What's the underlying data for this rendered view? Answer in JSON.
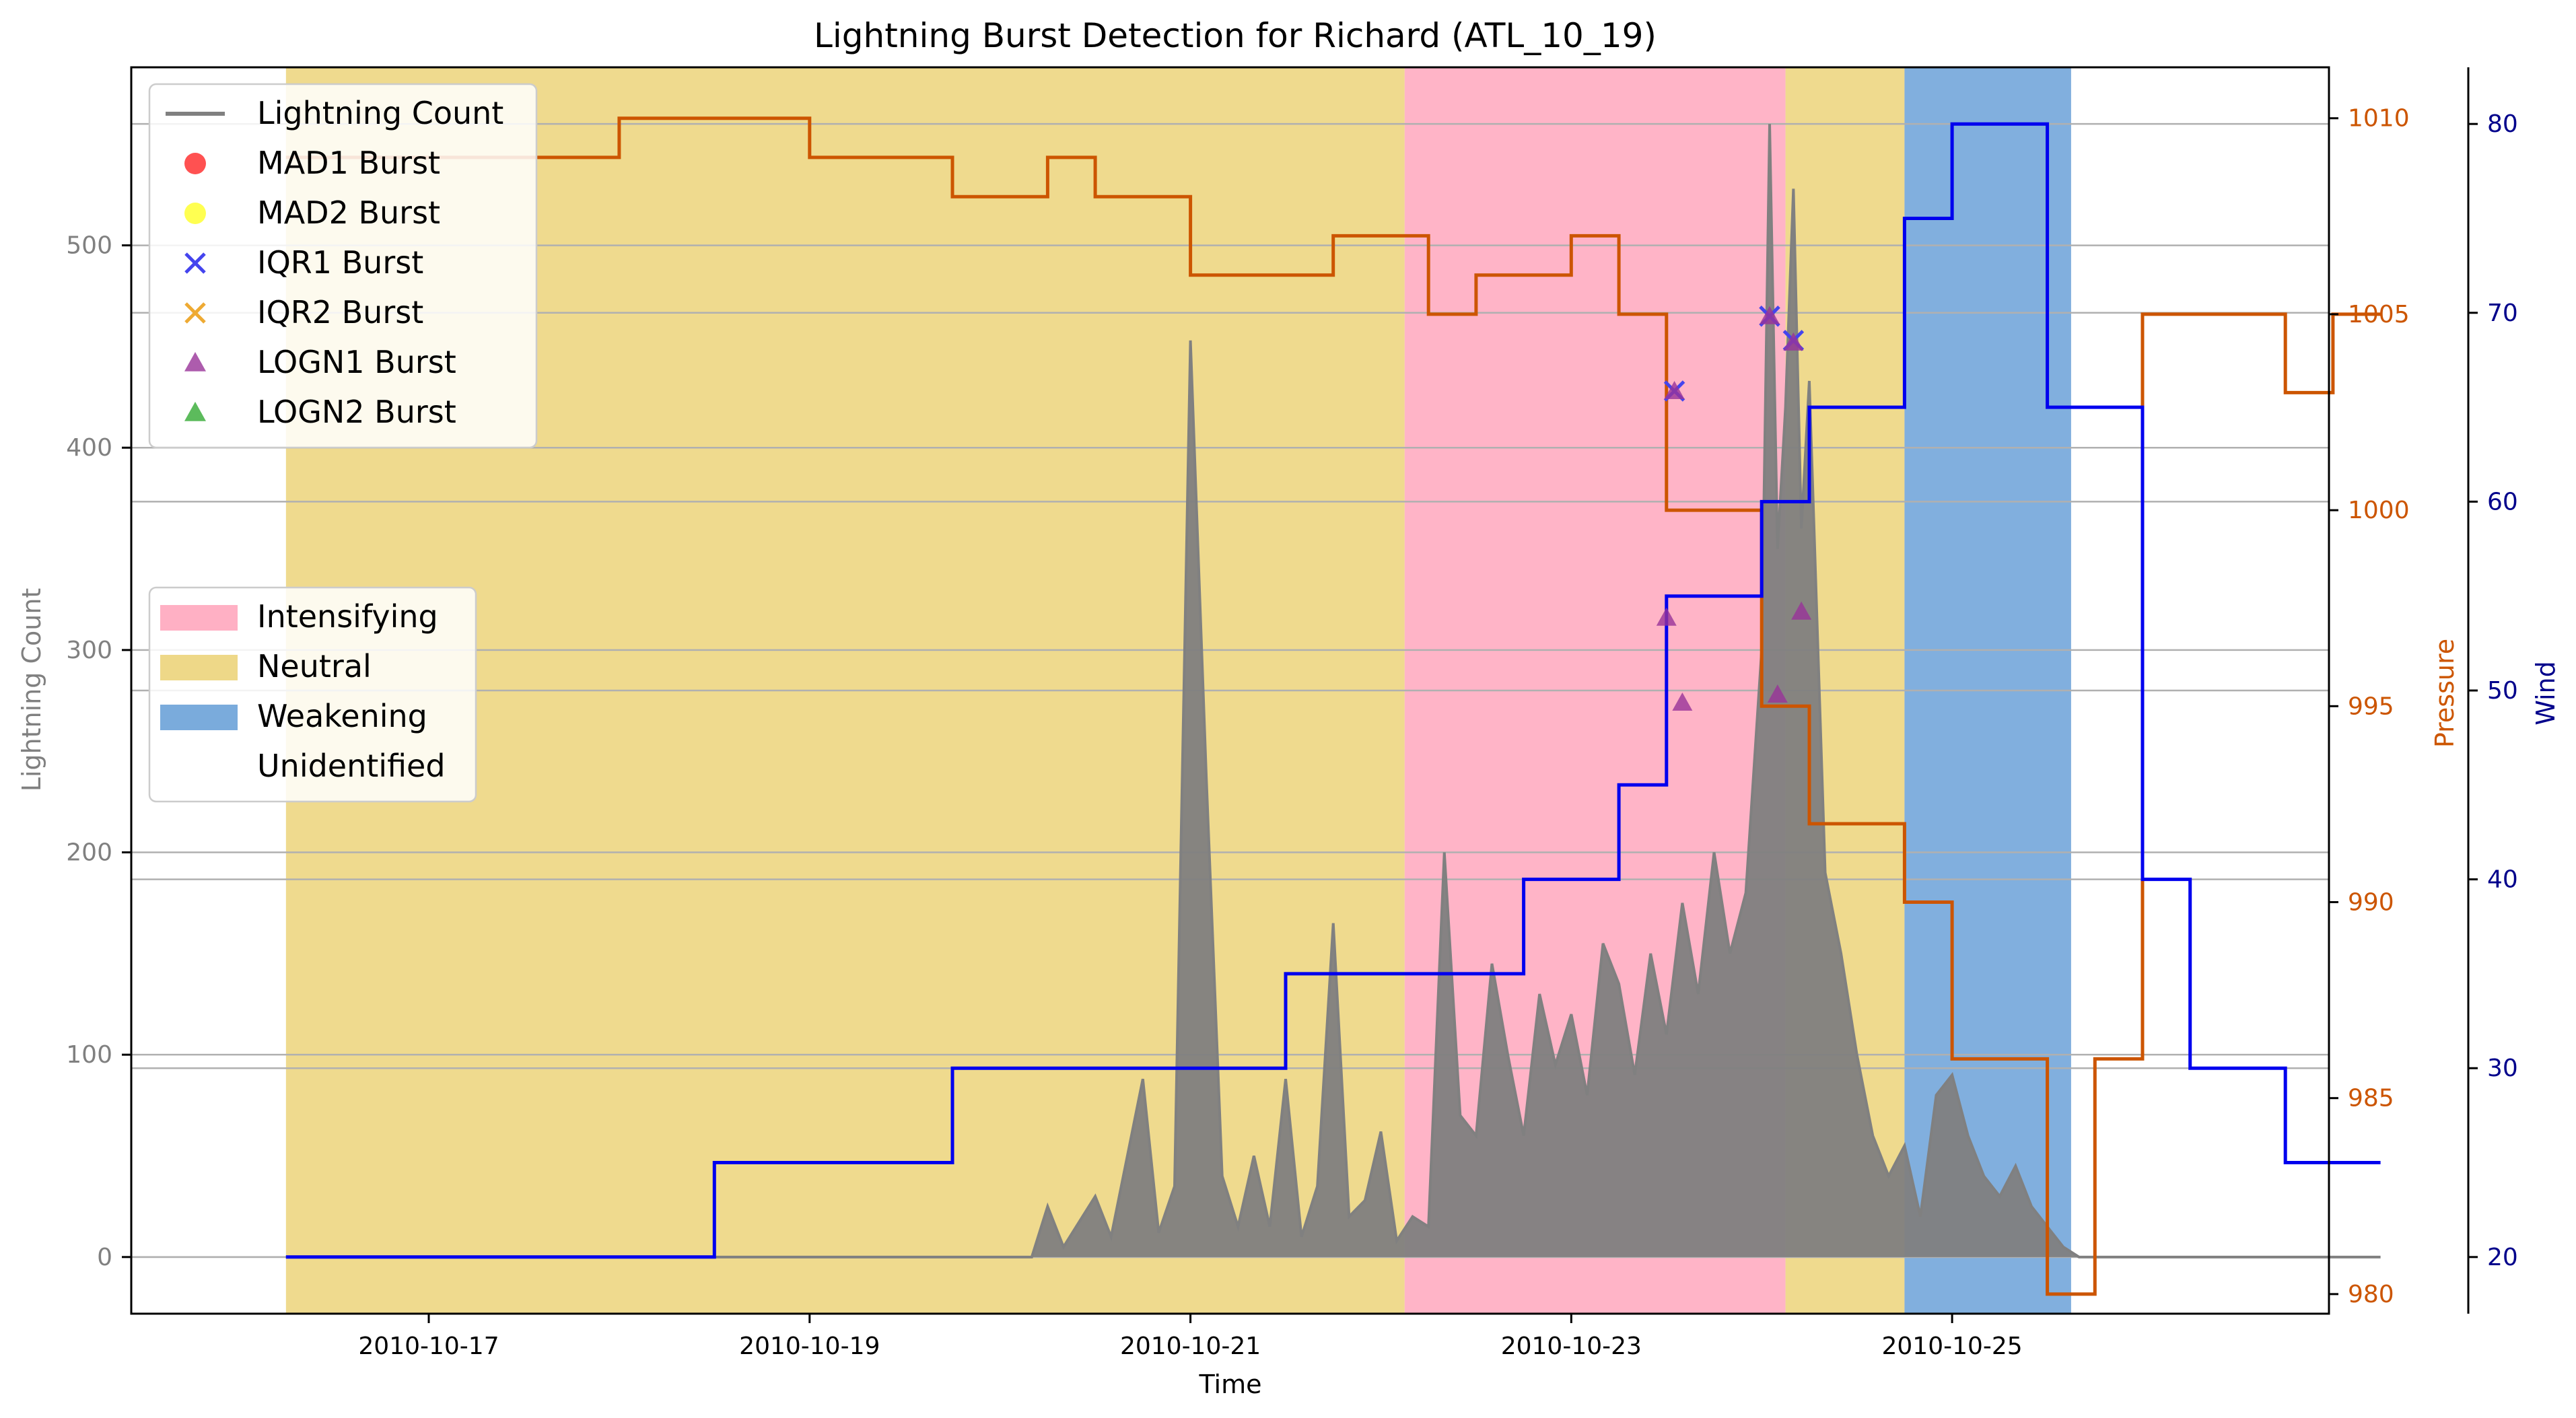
{
  "chart_data": {
    "type": "line",
    "title": "Lightning Burst Detection for Richard (ATL_10_19)",
    "xlabel": "Time",
    "ylabel_left": "Lightning Count",
    "ylabel_pressure": "Pressure",
    "ylabel_wind": "Wind",
    "x_range": [
      "2010-10-15T10:30",
      "2010-10-26T23:30"
    ],
    "x_ticks": [
      "2010-10-17",
      "2010-10-19",
      "2010-10-21",
      "2010-10-23",
      "2010-10-25"
    ],
    "ylim_left": [
      -28,
      588
    ],
    "yticks_left": [
      0,
      100,
      200,
      300,
      400,
      500
    ],
    "ylim_pressure": [
      979.5,
      1011.3
    ],
    "yticks_pressure": [
      980,
      985,
      990,
      995,
      1000,
      1005,
      1010
    ],
    "ylim_wind": [
      17,
      83
    ],
    "yticks_wind": [
      20,
      30,
      40,
      50,
      60,
      70,
      80
    ],
    "grid": "horizontal",
    "colors": {
      "lightning": "#808080",
      "pressure": "#cc5500",
      "wind": "#0000ee",
      "mad1": "#ff3333",
      "mad2": "#ffff33",
      "iqr1": "#4444ee",
      "iqr2": "#eeaa33",
      "logn1": "#993399",
      "logn2": "#33aa33",
      "intensifying": "#ffb0c4",
      "neutral": "#eed888",
      "weakening": "#7aabdc",
      "pressure_axis": "#cc5500",
      "wind_axis": "#00008b"
    },
    "phases": [
      {
        "label": "Neutral",
        "start": "2010-10-16T06:00",
        "end": "2010-10-22T03:00"
      },
      {
        "label": "Intensifying",
        "start": "2010-10-22T03:00",
        "end": "2010-10-24T03:00"
      },
      {
        "label": "Neutral",
        "start": "2010-10-24T03:00",
        "end": "2010-10-24T18:00"
      },
      {
        "label": "Weakening",
        "start": "2010-10-24T18:00",
        "end": "2010-10-25T15:00"
      }
    ],
    "pressure_series": {
      "name": "Pressure",
      "points": [
        [
          "2010-10-16T06:00",
          1009
        ],
        [
          "2010-10-18T00:00",
          1009
        ],
        [
          "2010-10-18T00:00",
          1010
        ],
        [
          "2010-10-19T00:00",
          1010
        ],
        [
          "2010-10-19T00:00",
          1009
        ],
        [
          "2010-10-19T18:00",
          1009
        ],
        [
          "2010-10-19T18:00",
          1008
        ],
        [
          "2010-10-20T06:00",
          1008
        ],
        [
          "2010-10-20T06:00",
          1009
        ],
        [
          "2010-10-20T12:00",
          1009
        ],
        [
          "2010-10-20T12:00",
          1008
        ],
        [
          "2010-10-21T00:00",
          1008
        ],
        [
          "2010-10-21T00:00",
          1006
        ],
        [
          "2010-10-21T18:00",
          1006
        ],
        [
          "2010-10-21T18:00",
          1007
        ],
        [
          "2010-10-22T06:00",
          1007
        ],
        [
          "2010-10-22T06:00",
          1005
        ],
        [
          "2010-10-22T12:00",
          1005
        ],
        [
          "2010-10-22T12:00",
          1006
        ],
        [
          "2010-10-23T00:00",
          1006
        ],
        [
          "2010-10-23T00:00",
          1007
        ],
        [
          "2010-10-23T06:00",
          1007
        ],
        [
          "2010-10-23T06:00",
          1005
        ],
        [
          "2010-10-23T12:00",
          1005
        ],
        [
          "2010-10-23T12:00",
          1000
        ],
        [
          "2010-10-24T00:00",
          1000
        ],
        [
          "2010-10-24T00:00",
          995
        ],
        [
          "2010-10-24T06:00",
          995
        ],
        [
          "2010-10-24T06:00",
          992
        ],
        [
          "2010-10-24T18:00",
          992
        ],
        [
          "2010-10-24T18:00",
          990
        ],
        [
          "2010-10-25T00:00",
          990
        ],
        [
          "2010-10-25T00:00",
          986
        ],
        [
          "2010-10-25T12:00",
          986
        ],
        [
          "2010-10-25T12:00",
          980
        ],
        [
          "2010-10-25T18:00",
          980
        ],
        [
          "2010-10-25T18:00",
          986
        ],
        [
          "2010-10-26T00:00",
          986
        ],
        [
          "2010-10-26T00:00",
          1005
        ],
        [
          "2010-10-26T18:00",
          1005
        ],
        [
          "2010-10-26T18:00",
          1003
        ],
        [
          "2010-10-27T00:00",
          1003
        ],
        [
          "2010-10-27T00:00",
          1005
        ],
        [
          "2010-10-27T06:00",
          1005
        ]
      ]
    },
    "wind_series": {
      "name": "Wind",
      "points": [
        [
          "2010-10-16T06:00",
          20
        ],
        [
          "2010-10-18T12:00",
          20
        ],
        [
          "2010-10-18T12:00",
          25
        ],
        [
          "2010-10-19T18:00",
          25
        ],
        [
          "2010-10-19T18:00",
          30
        ],
        [
          "2010-10-21T12:00",
          30
        ],
        [
          "2010-10-21T12:00",
          35
        ],
        [
          "2010-10-22T18:00",
          35
        ],
        [
          "2010-10-22T18:00",
          40
        ],
        [
          "2010-10-23T06:00",
          40
        ],
        [
          "2010-10-23T06:00",
          45
        ],
        [
          "2010-10-23T12:00",
          45
        ],
        [
          "2010-10-23T12:00",
          55
        ],
        [
          "2010-10-24T00:00",
          55
        ],
        [
          "2010-10-24T00:00",
          60
        ],
        [
          "2010-10-24T06:00",
          60
        ],
        [
          "2010-10-24T06:00",
          65
        ],
        [
          "2010-10-24T18:00",
          65
        ],
        [
          "2010-10-24T18:00",
          75
        ],
        [
          "2010-10-25T00:00",
          75
        ],
        [
          "2010-10-25T00:00",
          80
        ],
        [
          "2010-10-25T12:00",
          80
        ],
        [
          "2010-10-25T12:00",
          65
        ],
        [
          "2010-10-26T00:00",
          65
        ],
        [
          "2010-10-26T00:00",
          40
        ],
        [
          "2010-10-26T06:00",
          40
        ],
        [
          "2010-10-26T06:00",
          30
        ],
        [
          "2010-10-26T18:00",
          30
        ],
        [
          "2010-10-26T18:00",
          25
        ],
        [
          "2010-10-27T06:00",
          25
        ]
      ]
    },
    "lightning_series": {
      "name": "Lightning Count",
      "points": [
        [
          "2010-10-16T06:00",
          0
        ],
        [
          "2010-10-20T04:00",
          0
        ],
        [
          "2010-10-20T06:00",
          25
        ],
        [
          "2010-10-20T08:00",
          5
        ],
        [
          "2010-10-20T12:00",
          30
        ],
        [
          "2010-10-20T14:00",
          10
        ],
        [
          "2010-10-20T18:00",
          88
        ],
        [
          "2010-10-20T20:00",
          12
        ],
        [
          "2010-10-20T22:00",
          35
        ],
        [
          "2010-10-21T00:00",
          453
        ],
        [
          "2010-10-21T02:00",
          237
        ],
        [
          "2010-10-21T04:00",
          40
        ],
        [
          "2010-10-21T06:00",
          15
        ],
        [
          "2010-10-21T08:00",
          50
        ],
        [
          "2010-10-21T10:00",
          15
        ],
        [
          "2010-10-21T12:00",
          88
        ],
        [
          "2010-10-21T14:00",
          10
        ],
        [
          "2010-10-21T16:00",
          35
        ],
        [
          "2010-10-21T18:00",
          165
        ],
        [
          "2010-10-21T20:00",
          20
        ],
        [
          "2010-10-21T22:00",
          28
        ],
        [
          "2010-10-22T00:00",
          62
        ],
        [
          "2010-10-22T02:00",
          8
        ],
        [
          "2010-10-22T04:00",
          20
        ],
        [
          "2010-10-22T06:00",
          15
        ],
        [
          "2010-10-22T08:00",
          200
        ],
        [
          "2010-10-22T10:00",
          70
        ],
        [
          "2010-10-22T12:00",
          60
        ],
        [
          "2010-10-22T14:00",
          145
        ],
        [
          "2010-10-22T16:00",
          100
        ],
        [
          "2010-10-22T18:00",
          60
        ],
        [
          "2010-10-22T20:00",
          130
        ],
        [
          "2010-10-22T22:00",
          95
        ],
        [
          "2010-10-23T00:00",
          120
        ],
        [
          "2010-10-23T02:00",
          80
        ],
        [
          "2010-10-23T04:00",
          155
        ],
        [
          "2010-10-23T06:00",
          135
        ],
        [
          "2010-10-23T08:00",
          90
        ],
        [
          "2010-10-23T10:00",
          150
        ],
        [
          "2010-10-23T12:00",
          110
        ],
        [
          "2010-10-23T14:00",
          175
        ],
        [
          "2010-10-23T16:00",
          130
        ],
        [
          "2010-10-23T18:00",
          200
        ],
        [
          "2010-10-23T20:00",
          150
        ],
        [
          "2010-10-23T22:00",
          180
        ],
        [
          "2010-10-24T00:00",
          300
        ],
        [
          "2010-10-24T01:00",
          560
        ],
        [
          "2010-10-24T02:00",
          350
        ],
        [
          "2010-10-24T03:00",
          420
        ],
        [
          "2010-10-24T04:00",
          528
        ],
        [
          "2010-10-24T05:00",
          360
        ],
        [
          "2010-10-24T06:00",
          433
        ],
        [
          "2010-10-24T08:00",
          190
        ],
        [
          "2010-10-24T10:00",
          150
        ],
        [
          "2010-10-24T12:00",
          100
        ],
        [
          "2010-10-24T14:00",
          60
        ],
        [
          "2010-10-24T16:00",
          40
        ],
        [
          "2010-10-24T18:00",
          55
        ],
        [
          "2010-10-24T20:00",
          20
        ],
        [
          "2010-10-24T22:00",
          80
        ],
        [
          "2010-10-25T00:00",
          90
        ],
        [
          "2010-10-25T02:00",
          60
        ],
        [
          "2010-10-25T04:00",
          40
        ],
        [
          "2010-10-25T06:00",
          30
        ],
        [
          "2010-10-25T08:00",
          45
        ],
        [
          "2010-10-25T10:00",
          25
        ],
        [
          "2010-10-25T12:00",
          15
        ],
        [
          "2010-10-25T14:00",
          5
        ],
        [
          "2010-10-25T16:00",
          0
        ],
        [
          "2010-10-27T06:00",
          0
        ]
      ]
    },
    "bursts": [
      {
        "type": "IQR1",
        "x": "2010-10-23T13:00",
        "y": 428
      },
      {
        "type": "IQR1",
        "x": "2010-10-24T01:00",
        "y": 465
      },
      {
        "type": "IQR1",
        "x": "2010-10-24T04:00",
        "y": 453
      },
      {
        "type": "LOGN1",
        "x": "2010-10-23T13:00",
        "y": 428
      },
      {
        "type": "LOGN1",
        "x": "2010-10-23T12:00",
        "y": 316
      },
      {
        "type": "LOGN1",
        "x": "2010-10-23T14:00",
        "y": 274
      },
      {
        "type": "LOGN1",
        "x": "2010-10-24T01:00",
        "y": 465
      },
      {
        "type": "LOGN1",
        "x": "2010-10-24T04:00",
        "y": 452
      },
      {
        "type": "LOGN1",
        "x": "2010-10-24T05:00",
        "y": 319
      },
      {
        "type": "LOGN1",
        "x": "2010-10-24T02:00",
        "y": 278
      }
    ],
    "legend_markers": {
      "position": "upper-left",
      "entries": [
        {
          "label": "Lightning Count",
          "kind": "line",
          "color": "#808080"
        },
        {
          "label": "MAD1 Burst",
          "kind": "circle",
          "color": "#ff3333"
        },
        {
          "label": "MAD2 Burst",
          "kind": "circle",
          "color": "#ffff33"
        },
        {
          "label": "IQR1 Burst",
          "kind": "x",
          "color": "#4444ee"
        },
        {
          "label": "IQR2 Burst",
          "kind": "x",
          "color": "#eeaa33"
        },
        {
          "label": "LOGN1 Burst",
          "kind": "triangle",
          "color": "#993399"
        },
        {
          "label": "LOGN2 Burst",
          "kind": "triangle",
          "color": "#33aa33"
        }
      ]
    },
    "legend_phases": {
      "position": "center-left",
      "entries": [
        {
          "label": "Intensifying",
          "color": "#ffb0c4"
        },
        {
          "label": "Neutral",
          "color": "#eed888"
        },
        {
          "label": "Weakening",
          "color": "#7aabdc"
        },
        {
          "label": "Unidentified",
          "color": "#ffffff"
        }
      ]
    }
  }
}
